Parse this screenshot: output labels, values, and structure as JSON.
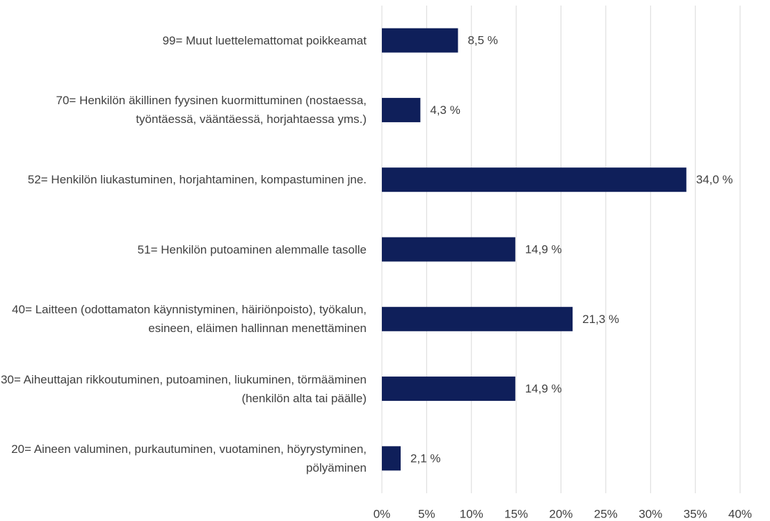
{
  "chart_data": {
    "type": "hbar",
    "categories": [
      "99= Muut luettelemattomat poikkeamat",
      "70= Henkilön äkillinen fyysinen kuormittuminen (nostaessa, työntäessä, vääntäessä, horjahtaessa yms.)",
      "52= Henkilön liukastuminen, horjahtaminen, kompastuminen jne.",
      "51= Henkilön putoaminen alemmalle tasolle",
      "40= Laitteen (odottamaton käynnistyminen, häiriönpoisto), työkalun, esineen, eläimen hallinnan menettäminen",
      "30= Aiheuttajan rikkoutuminen, putoaminen, liukuminen, törmääminen (henkilön alta tai päälle)",
      "20= Aineen valuminen, purkautuminen, vuotaminen, höyrystyminen, pölyäminen"
    ],
    "values": [
      8.5,
      4.3,
      34.0,
      14.9,
      21.3,
      14.9,
      2.1
    ],
    "value_labels": [
      "8,5 %",
      "4,3 %",
      "34,0 %",
      "14,9 %",
      "21,3 %",
      "14,9 %",
      "2,1 %"
    ],
    "color": "#0f1f5a",
    "xlim": [
      0,
      40
    ],
    "xticks": [
      {
        "value": 0,
        "label": "0%"
      },
      {
        "value": 5,
        "label": "5%"
      },
      {
        "value": 10,
        "label": "10%"
      },
      {
        "value": 15,
        "label": "15%"
      },
      {
        "value": 20,
        "label": "20%"
      },
      {
        "value": 25,
        "label": "25%"
      },
      {
        "value": 30,
        "label": "30%"
      },
      {
        "value": 35,
        "label": "35%"
      },
      {
        "value": 40,
        "label": "40%"
      }
    ],
    "grid": true
  }
}
